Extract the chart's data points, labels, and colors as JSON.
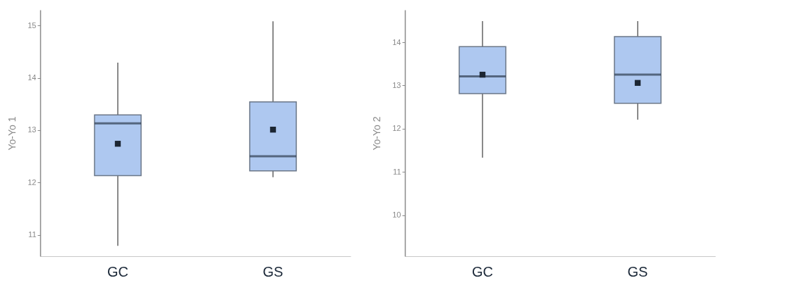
{
  "chart_data": [
    {
      "type": "box",
      "ylabel": "Yo-Yo 1",
      "categories": [
        "GC",
        "GS"
      ],
      "ylim": [
        10.59,
        15.3
      ],
      "yticks": [
        11,
        12,
        13,
        14,
        15
      ],
      "grid": false,
      "series": [
        {
          "color": "#aec8f0",
          "boxes": [
            {
              "low": 10.79,
              "q1": 12.13,
              "median": 13.13,
              "q3": 13.29,
              "high": 14.29,
              "mean": 12.74
            },
            {
              "low": 12.1,
              "q1": 12.22,
              "median": 12.5,
              "q3": 13.54,
              "high": 15.08,
              "mean": 13.01
            }
          ]
        }
      ]
    },
    {
      "type": "box",
      "ylabel": "Yo-Yo 2",
      "categories": [
        "GC",
        "GS"
      ],
      "ylim": [
        9.05,
        14.75
      ],
      "yticks": [
        10,
        11,
        12,
        13,
        14
      ],
      "grid": false,
      "series": [
        {
          "color": "#aec8f0",
          "boxes": [
            {
              "low": 11.33,
              "q1": 12.81,
              "median": 13.21,
              "q3": 13.9,
              "high": 14.49,
              "mean": 13.25
            },
            {
              "low": 12.21,
              "q1": 12.59,
              "median": 13.25,
              "q3": 14.13,
              "high": 14.49,
              "mean": 13.06
            }
          ]
        }
      ]
    }
  ]
}
